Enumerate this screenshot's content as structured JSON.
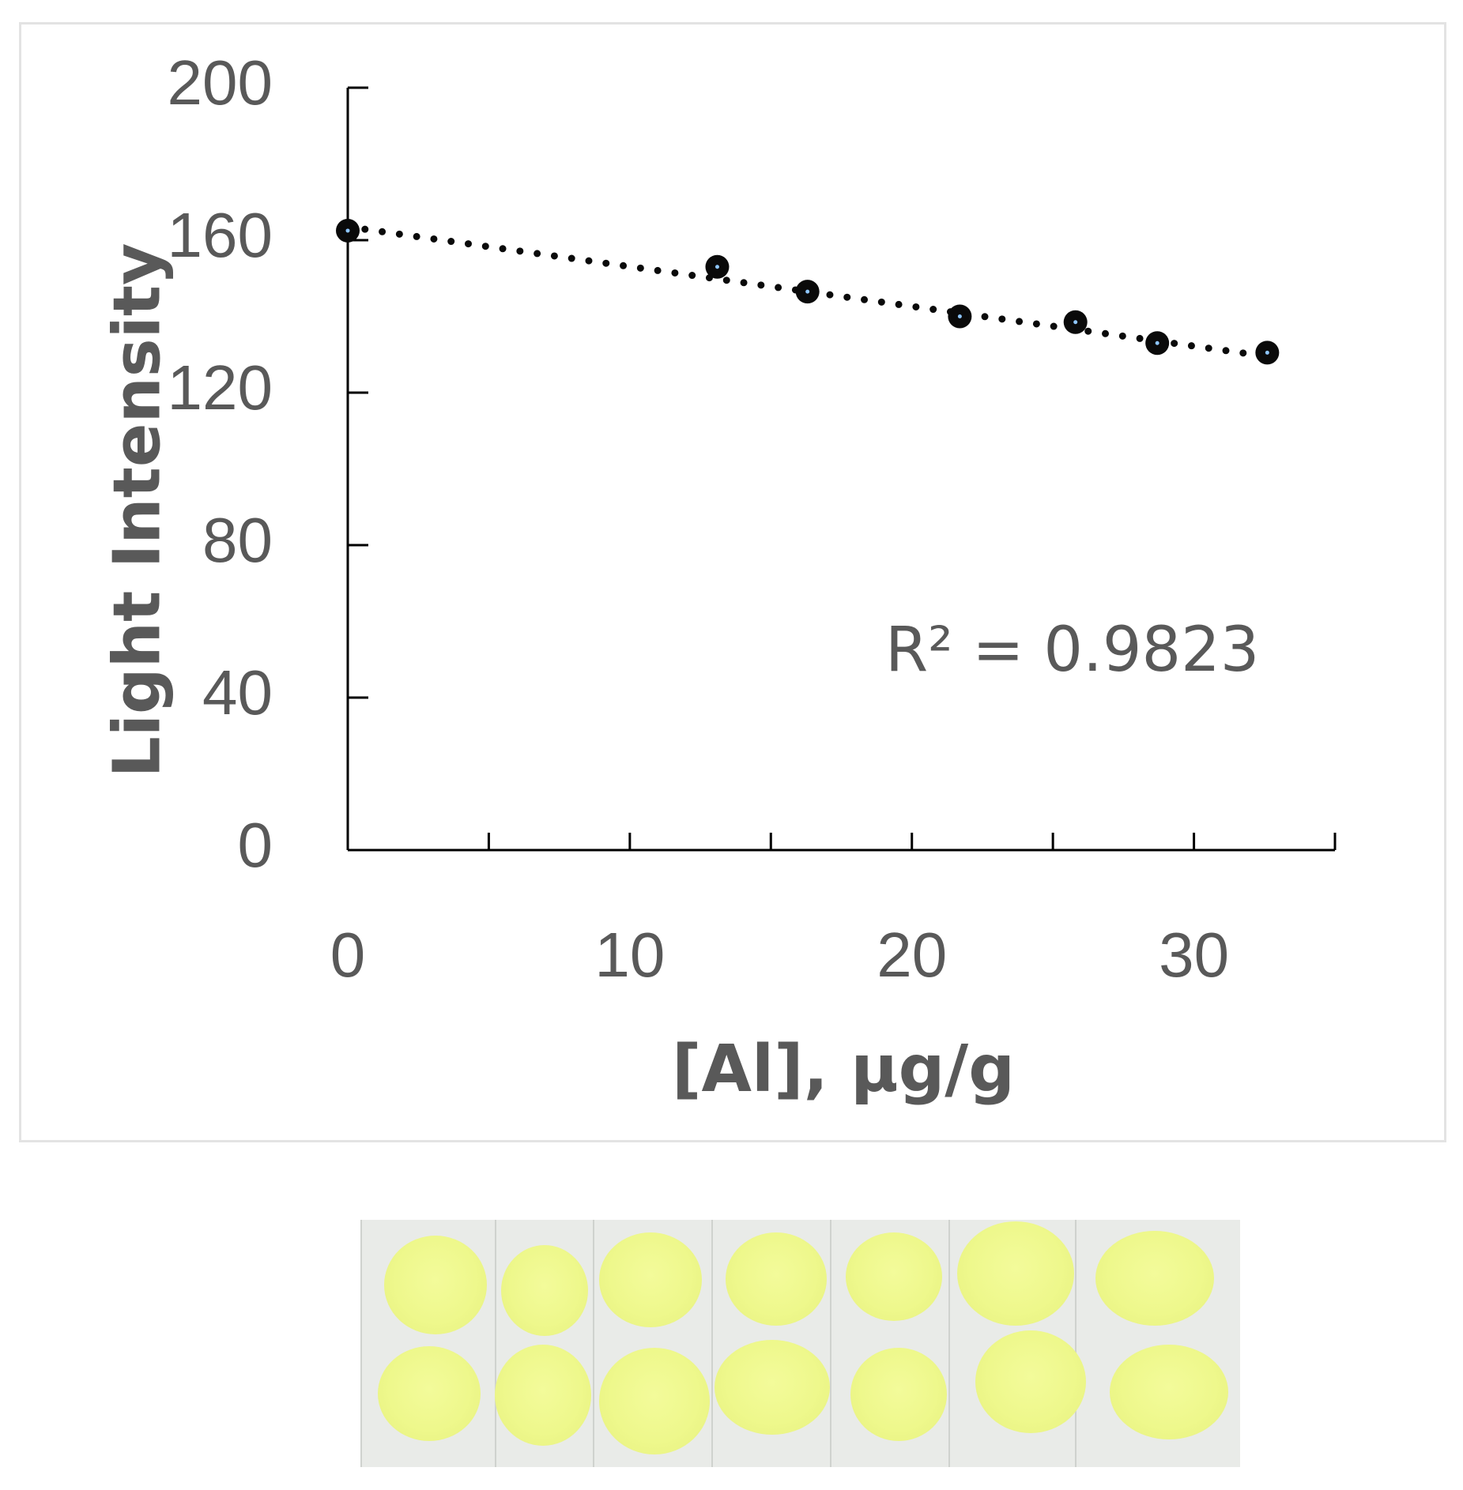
{
  "chart_data": {
    "type": "scatter",
    "xlabel": "[Al], μg/g",
    "ylabel": "Light Intensity",
    "xlim": [
      0,
      35
    ],
    "ylim": [
      0,
      200
    ],
    "x_ticks": [
      0,
      10,
      20,
      30
    ],
    "x_minor_ticks": [
      5,
      15,
      25,
      35
    ],
    "y_ticks": [
      0,
      40,
      80,
      120,
      160,
      200
    ],
    "grid": false,
    "legend": "none",
    "series": [
      {
        "x": [
          0,
          13.1,
          16.3,
          21.7,
          25.8,
          28.7,
          32.6
        ],
        "y": [
          162.5,
          153,
          146.5,
          140,
          138.5,
          133,
          130.5
        ],
        "marker_color": "#0a0a0a"
      }
    ],
    "trendline": {
      "type": "linear",
      "style": "dotted",
      "color": "#0a0a0a",
      "x": [
        0,
        32.6
      ],
      "y": [
        163.5,
        129.5
      ]
    },
    "annotation": {
      "text": "R² = 0.9823"
    }
  },
  "photo": {
    "description_icon": "test-strip-photo",
    "spot_color": "#eef88c",
    "strip_count": 7
  }
}
